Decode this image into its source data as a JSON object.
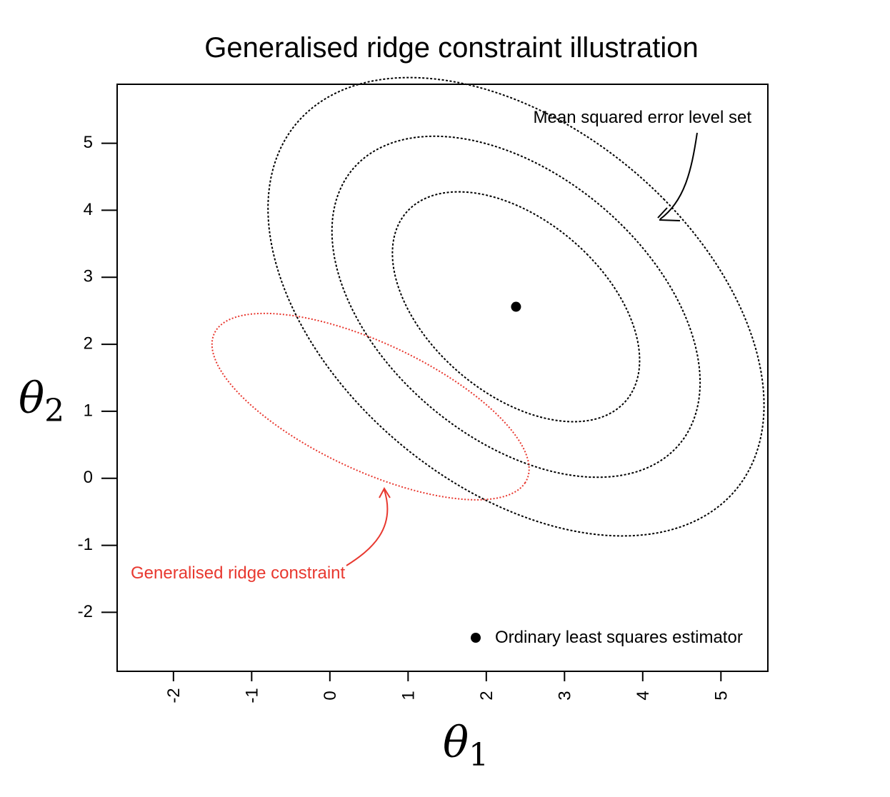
{
  "chart_data": {
    "type": "scatter",
    "title": "Generalised ridge constraint illustration",
    "xlabel": "θ",
    "xlabel_sub": "1",
    "ylabel": "θ",
    "ylabel_sub": "2",
    "xlim": [
      -2.72,
      5.6
    ],
    "ylim": [
      -2.88,
      5.88
    ],
    "xticks": [
      -2,
      -1,
      0,
      1,
      2,
      3,
      4,
      5
    ],
    "yticks": [
      -2,
      -1,
      0,
      1,
      2,
      3,
      4,
      5
    ],
    "xtick_labels": [
      "-2",
      "-1",
      "0",
      "1",
      "2",
      "3",
      "4",
      "5"
    ],
    "ytick_labels": [
      "-2",
      "-1",
      "0",
      "1",
      "2",
      "3",
      "4",
      "5"
    ],
    "grid": false,
    "points": [
      {
        "x": 2.38,
        "y": 2.56
      }
    ],
    "mse_level_sets": {
      "center": [
        2.38,
        2.56
      ],
      "angle_deg": 40,
      "semi_axes": [
        [
          1.2,
          2.0
        ],
        [
          1.82,
          2.95
        ],
        [
          2.48,
          3.95
        ]
      ],
      "color": "#000000"
    },
    "constraint_ellipse": {
      "center": [
        0.52,
        1.07
      ],
      "angle_deg": -30,
      "semi_axes": [
        2.28,
        0.92
      ],
      "color": "#e8382f"
    },
    "annotations": {
      "mse_label": "Mean squared error level set",
      "ridge_label": "Generalised  ridge constraint",
      "legend_label": "Ordinary least squares estimator"
    },
    "colors": {
      "ridge": "#e8382f",
      "ink": "#000000"
    }
  }
}
